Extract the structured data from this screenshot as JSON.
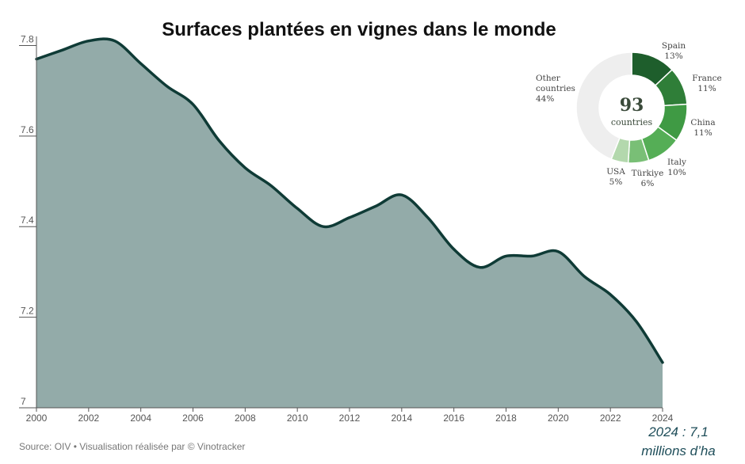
{
  "chart_data": [
    {
      "type": "area",
      "title": "Surfaces plantées en vignes dans le monde",
      "xlabel": "",
      "ylabel": "",
      "x": [
        2000,
        2001,
        2002,
        2003,
        2004,
        2005,
        2006,
        2007,
        2008,
        2009,
        2010,
        2011,
        2012,
        2013,
        2014,
        2015,
        2016,
        2017,
        2018,
        2019,
        2020,
        2021,
        2022,
        2023,
        2024
      ],
      "values": [
        7.77,
        7.79,
        7.81,
        7.81,
        7.76,
        7.71,
        7.67,
        7.59,
        7.53,
        7.49,
        7.44,
        7.4,
        7.42,
        7.445,
        7.47,
        7.42,
        7.35,
        7.31,
        7.335,
        7.335,
        7.345,
        7.29,
        7.25,
        7.19,
        7.1
      ],
      "x_ticks": [
        "2000",
        "2002",
        "2004",
        "2006",
        "2008",
        "2010",
        "2012",
        "2014",
        "2016",
        "2018",
        "2020",
        "2022",
        "2024"
      ],
      "y_ticks": [
        "7",
        "7.2",
        "7.4",
        "7.6",
        "7.8"
      ],
      "xlim": [
        2000,
        2024
      ],
      "ylim": [
        7.0,
        7.82
      ],
      "grid": false,
      "colors": {
        "fill": "#93aba9",
        "line": "#0f3b36"
      },
      "source": "Source: OIV • Visualisation réalisée par © Vinotracker"
    },
    {
      "type": "pie",
      "style": "donut",
      "center_value": "93",
      "center_label": "countries",
      "slices": [
        {
          "label": "Spain",
          "value": 13,
          "pct": "13%",
          "color": "#1e5e2c"
        },
        {
          "label": "France",
          "value": 11,
          "pct": "11%",
          "color": "#2f7e38"
        },
        {
          "label": "China",
          "value": 11,
          "pct": "11%",
          "color": "#3f9a44"
        },
        {
          "label": "Italy",
          "value": 10,
          "pct": "10%",
          "color": "#55ae56"
        },
        {
          "label": "Türkiye",
          "value": 6,
          "pct": "6%",
          "color": "#79bf76"
        },
        {
          "label": "USA",
          "value": 5,
          "pct": "5%",
          "color": "#b3d8ad"
        },
        {
          "label_lines": [
            "Other",
            "countries"
          ],
          "label": "Other countries",
          "value": 44,
          "pct": "44%",
          "color": "#eeeeee"
        }
      ]
    }
  ],
  "callout": {
    "line1": "2024 : 7,1",
    "line2": "millions d’ha"
  }
}
